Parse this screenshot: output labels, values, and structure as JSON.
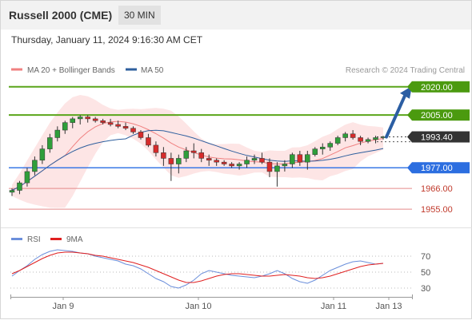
{
  "header": {
    "instrument": "Russell 2000 (CME)",
    "interval": "30 MIN"
  },
  "datetime": "Thursday, January 11, 2024 9:16:30 AM CET",
  "copyright": "Research © 2024 Trading Central",
  "chart_data": [
    {
      "type": "candlestick",
      "legend": [
        "MA 20 + Bollinger Bands",
        "MA 50"
      ],
      "ylim": [
        1947,
        2025
      ],
      "x_ticks": [
        "Jan 9",
        "Jan 10",
        "Jan 11",
        "Jan 13"
      ],
      "levels": [
        {
          "value": 2020.0,
          "label": "2020.00",
          "type": "resistance"
        },
        {
          "value": 2005.0,
          "label": "2005.00",
          "type": "resistance"
        },
        {
          "value": 1993.4,
          "label": "1993.40",
          "type": "last"
        },
        {
          "value": 1977.0,
          "label": "1977.00",
          "type": "pivot"
        },
        {
          "value": 1966.0,
          "label": "1966.00",
          "type": "support"
        },
        {
          "value": 1955.0,
          "label": "1955.00",
          "type": "support"
        }
      ],
      "candles": [
        [
          1964,
          1966,
          1962,
          1965
        ],
        [
          1965,
          1970,
          1963,
          1969
        ],
        [
          1969,
          1977,
          1967,
          1975
        ],
        [
          1975,
          1983,
          1973,
          1981
        ],
        [
          1981,
          1989,
          1979,
          1987
        ],
        [
          1987,
          1995,
          1985,
          1993
        ],
        [
          1993,
          1999,
          1991,
          1997
        ],
        [
          1997,
          2002,
          1995,
          2001
        ],
        [
          2001,
          2004,
          1998,
          2003
        ],
        [
          2003,
          2005,
          2000,
          2004
        ],
        [
          2004,
          2005,
          2001,
          2003
        ],
        [
          2003,
          2004,
          2001,
          2002
        ],
        [
          2002,
          2003,
          2000,
          2001
        ],
        [
          2001,
          2003,
          1999,
          2000
        ],
        [
          2000,
          2002,
          1998,
          1999
        ],
        [
          1999,
          2001,
          1997,
          1998
        ],
        [
          1998,
          1999,
          1995,
          1996
        ],
        [
          1996,
          1997,
          1992,
          1993
        ],
        [
          1993,
          1995,
          1988,
          1989
        ],
        [
          1989,
          1991,
          1983,
          1985
        ],
        [
          1985,
          1988,
          1978,
          1982
        ],
        [
          1982,
          1985,
          1970,
          1979
        ],
        [
          1979,
          1984,
          1974,
          1982
        ],
        [
          1982,
          1988,
          1980,
          1986
        ],
        [
          1986,
          1990,
          1982,
          1985
        ],
        [
          1985,
          1987,
          1980,
          1982
        ],
        [
          1982,
          1984,
          1978,
          1981
        ],
        [
          1981,
          1982,
          1978,
          1980
        ],
        [
          1980,
          1981,
          1978,
          1979
        ],
        [
          1979,
          1980,
          1977,
          1978
        ],
        [
          1978,
          1980,
          1976,
          1979
        ],
        [
          1979,
          1983,
          1977,
          1981
        ],
        [
          1981,
          1984,
          1979,
          1982
        ],
        [
          1982,
          1985,
          1979,
          1980
        ],
        [
          1980,
          1982,
          1972,
          1975
        ],
        [
          1975,
          1980,
          1967,
          1978
        ],
        [
          1978,
          1981,
          1975,
          1979
        ],
        [
          1979,
          1985,
          1977,
          1984
        ],
        [
          1984,
          1986,
          1978,
          1980
        ],
        [
          1980,
          1986,
          1976,
          1984
        ],
        [
          1984,
          1988,
          1983,
          1987
        ],
        [
          1987,
          1990,
          1984,
          1988
        ],
        [
          1988,
          1991,
          1986,
          1990
        ],
        [
          1990,
          1994,
          1989,
          1993
        ],
        [
          1993,
          1996,
          1991,
          1995
        ],
        [
          1995,
          1997,
          1992,
          1993
        ],
        [
          1993,
          1994,
          1989,
          1991
        ],
        [
          1991,
          1993,
          1990,
          1992
        ],
        [
          1992,
          1994,
          1990,
          1993
        ],
        [
          1993,
          1994,
          1992,
          1993.4
        ]
      ],
      "indicators": [
        "MA 20",
        "Bollinger Bands",
        "MA 50"
      ],
      "projection": {
        "from": 1993.4,
        "to": 2020.0
      }
    },
    {
      "type": "line",
      "legend": [
        "RSI",
        "9MA"
      ],
      "ylim": [
        20,
        80
      ],
      "y_ticks": [
        70,
        50,
        30
      ],
      "series": [
        {
          "name": "RSI",
          "values": [
            45,
            52,
            58,
            66,
            72,
            76,
            78,
            77,
            76,
            74,
            73,
            70,
            68,
            66,
            64,
            60,
            58,
            54,
            48,
            42,
            38,
            32,
            30,
            34,
            40,
            48,
            52,
            50,
            48,
            46,
            45,
            44,
            43,
            45,
            48,
            52,
            48,
            42,
            38,
            36,
            40,
            46,
            52,
            56,
            60,
            63,
            64,
            62,
            60,
            61
          ]
        },
        {
          "name": "9MA",
          "values": [
            48,
            52,
            57,
            62,
            67,
            71,
            74,
            75,
            75,
            74,
            73,
            71,
            70,
            68,
            66,
            64,
            62,
            59,
            56,
            52,
            48,
            44,
            40,
            37,
            37,
            39,
            42,
            45,
            47,
            48,
            48,
            47,
            46,
            45,
            45,
            46,
            47,
            46,
            45,
            43,
            42,
            43,
            45,
            48,
            51,
            54,
            57,
            59,
            60,
            61
          ]
        }
      ]
    }
  ]
}
